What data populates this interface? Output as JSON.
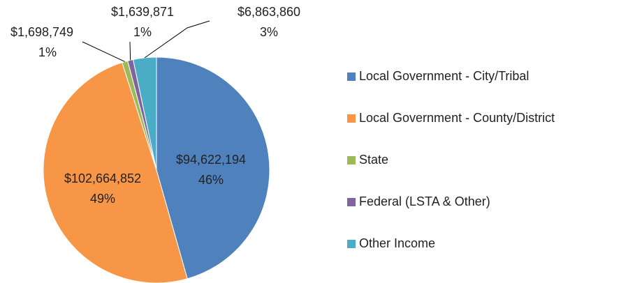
{
  "chart_data": {
    "type": "pie",
    "categories": [
      "Local Government - City/Tribal",
      "Local Government - County/District",
      "State",
      "Federal (LSTA & Other)",
      "Other Income"
    ],
    "values": [
      94622194,
      102664852,
      1698749,
      1639871,
      6863860
    ],
    "value_labels": [
      "$94,622,194",
      "$102,664,852",
      "$1,698,749",
      "$1,639,871",
      "$6,863,860"
    ],
    "percent_labels": [
      "46%",
      "49%",
      "1%",
      "1%",
      "3%"
    ],
    "colors": [
      "#4f81bd",
      "#f79646",
      "#9bbb59",
      "#8064a2",
      "#4bacc6"
    ],
    "legend": "right"
  }
}
